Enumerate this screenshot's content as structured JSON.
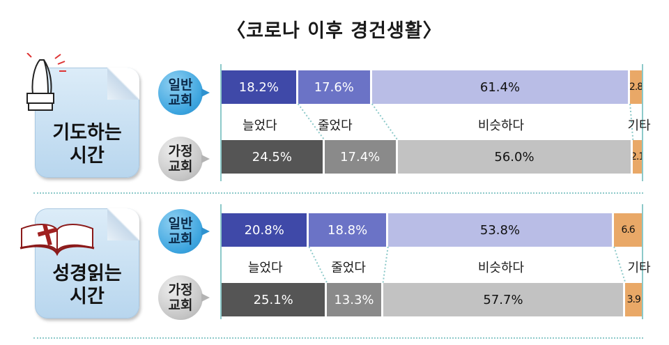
{
  "title": "〈코로나 이후 경건생활〉",
  "colors": {
    "general_seg": [
      "#3f49a8",
      "#6b73c6",
      "#b9bde6",
      "#e9a867"
    ],
    "home_seg": [
      "#555555",
      "#8a8a8a",
      "#c2c2c2",
      "#e9a867"
    ]
  },
  "chart_data": [
    {
      "type": "bar",
      "stacked": true,
      "orientation": "horizontal",
      "group": "기도하는 시간",
      "categories": [
        "늘었다",
        "줄었다",
        "비슷하다",
        "기타"
      ],
      "series": [
        {
          "name": "일반 교회",
          "values": [
            18.2,
            17.6,
            61.4,
            2.8
          ],
          "labels": [
            "18.2%",
            "17.6%",
            "61.4%",
            "2.8"
          ]
        },
        {
          "name": "가정 교회",
          "values": [
            24.5,
            17.4,
            56.0,
            2.1
          ],
          "labels": [
            "24.5%",
            "17.4%",
            "56.0%",
            "2.1"
          ]
        }
      ]
    },
    {
      "type": "bar",
      "stacked": true,
      "orientation": "horizontal",
      "group": "성경읽는 시간",
      "categories": [
        "늘었다",
        "줄었다",
        "비슷하다",
        "기타"
      ],
      "series": [
        {
          "name": "일반 교회",
          "values": [
            20.8,
            18.8,
            53.8,
            6.6
          ],
          "labels": [
            "20.8%",
            "18.8%",
            "53.8%",
            "6.6"
          ]
        },
        {
          "name": "가정 교회",
          "values": [
            25.1,
            13.3,
            57.7,
            3.9
          ],
          "labels": [
            "25.1%",
            "13.3%",
            "57.7%",
            "3.9"
          ]
        }
      ]
    }
  ],
  "panels": [
    {
      "card_line1": "기도하는",
      "card_line2": "시간",
      "icon": "praying-hands-icon",
      "badge_general": [
        "일반",
        "교회"
      ],
      "badge_home": [
        "가정",
        "교회"
      ]
    },
    {
      "card_line1": "성경읽는",
      "card_line2": "시간",
      "icon": "bible-cross-icon",
      "badge_general": [
        "일반",
        "교회"
      ],
      "badge_home": [
        "가정",
        "교회"
      ]
    }
  ]
}
